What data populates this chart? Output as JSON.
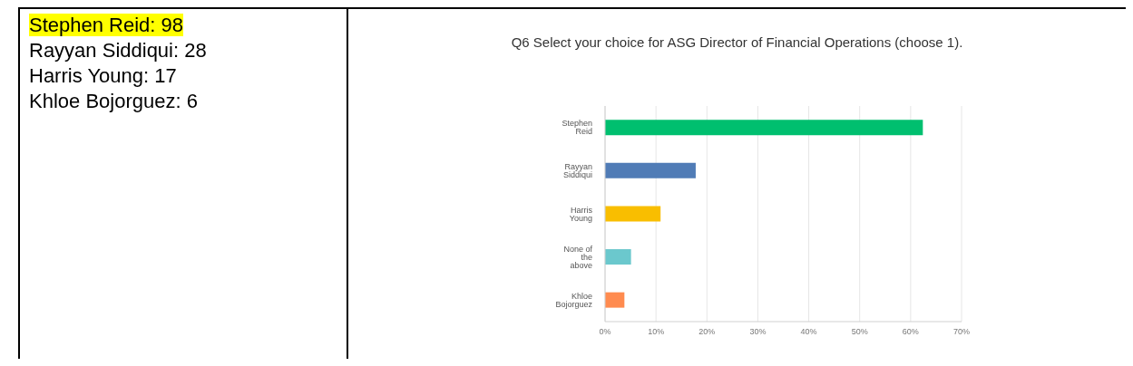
{
  "chart_data": {
    "type": "bar",
    "orientation": "horizontal",
    "title": "Q6 Select your choice for ASG Director of Financial Operations (choose 1).",
    "categories": [
      "Stephen Reid",
      "Rayyan Siddiqui",
      "Harris Young",
      "None of the above",
      "Khloe Bojorguez"
    ],
    "values": [
      62.4,
      17.8,
      10.9,
      5.1,
      3.8
    ],
    "colors": [
      "#00bf6f",
      "#507cb6",
      "#f9be00",
      "#6bc8cd",
      "#ff8b4f"
    ],
    "xlim": [
      0,
      70
    ],
    "xticks": [
      {
        "value": 0,
        "label": "0%"
      },
      {
        "value": 10,
        "label": "10%"
      },
      {
        "value": 20,
        "label": "20%"
      },
      {
        "value": 30,
        "label": "30%"
      },
      {
        "value": 40,
        "label": "40%"
      },
      {
        "value": 50,
        "label": "50%"
      },
      {
        "value": 60,
        "label": "60%"
      },
      {
        "value": 70,
        "label": "70%"
      }
    ],
    "grid": "x",
    "legend": false,
    "annotations": [
      "Stephen Reid: 98",
      "Rayyan Siddiqui: 28",
      "Harris Young: 17",
      "Khloe Bojorguez: 6"
    ]
  }
}
